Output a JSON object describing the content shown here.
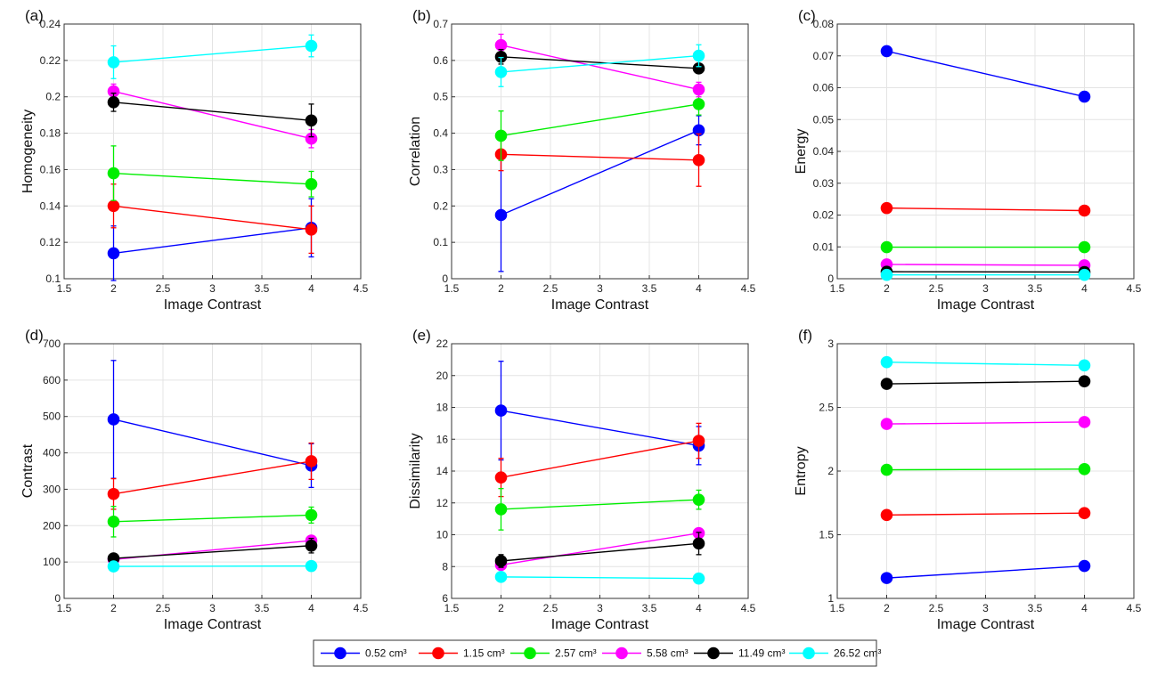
{
  "legend": {
    "series": [
      {
        "name": "0.52 cm³",
        "color": "#0000ff"
      },
      {
        "name": "1.15 cm³",
        "color": "#ff0000"
      },
      {
        "name": "2.57 cm³",
        "color": "#00ee00"
      },
      {
        "name": "5.58 cm³",
        "color": "#ff00ff"
      },
      {
        "name": "11.49 cm³",
        "color": "#000000"
      },
      {
        "name": "26.52 cm³",
        "color": "#00ffff"
      }
    ]
  },
  "chart_data": [
    {
      "type": "line",
      "panel_label": "(a)",
      "xlabel": "Image Contrast",
      "ylabel": "Homogeneity",
      "xlim": [
        1.5,
        4.5
      ],
      "ylim": [
        0.1,
        0.24
      ],
      "xticks": [
        1.5,
        2,
        2.5,
        3,
        3.5,
        4,
        4.5
      ],
      "xtick_labels": [
        "1.5",
        "2",
        "2.5",
        "3",
        "3.5",
        "4",
        "4.5"
      ],
      "yticks": [
        0.1,
        0.12,
        0.14,
        0.16,
        0.18,
        0.2,
        0.22,
        0.24
      ],
      "ytick_labels": [
        "0.1",
        "0.12",
        "0.14",
        "0.16",
        "0.18",
        "0.2",
        "0.22",
        "0.24"
      ],
      "x": [
        2,
        4
      ],
      "grid": true,
      "series": [
        {
          "name": "0.52 cm³",
          "values": [
            0.114,
            0.128
          ],
          "err": [
            0.015,
            0.016
          ]
        },
        {
          "name": "1.15 cm³",
          "values": [
            0.14,
            0.127
          ],
          "err": [
            0.012,
            0.013
          ]
        },
        {
          "name": "2.57 cm³",
          "values": [
            0.158,
            0.152
          ],
          "err": [
            0.015,
            0.007
          ]
        },
        {
          "name": "5.58 cm³",
          "values": [
            0.203,
            0.177
          ],
          "err": [
            0.004,
            0.005
          ]
        },
        {
          "name": "11.49 cm³",
          "values": [
            0.197,
            0.187
          ],
          "err": [
            0.005,
            0.009
          ]
        },
        {
          "name": "26.52 cm³",
          "values": [
            0.219,
            0.228
          ],
          "err": [
            0.009,
            0.006
          ]
        }
      ]
    },
    {
      "type": "line",
      "panel_label": "(b)",
      "xlabel": "Image Contrast",
      "ylabel": "Correlation",
      "xlim": [
        1.5,
        4.5
      ],
      "ylim": [
        0,
        0.7
      ],
      "xticks": [
        1.5,
        2,
        2.5,
        3,
        3.5,
        4,
        4.5
      ],
      "xtick_labels": [
        "1.5",
        "2",
        "2.5",
        "3",
        "3.5",
        "4",
        "4.5"
      ],
      "yticks": [
        0,
        0.1,
        0.2,
        0.3,
        0.4,
        0.5,
        0.6,
        0.7
      ],
      "ytick_labels": [
        "0",
        "0.1",
        "0.2",
        "0.3",
        "0.4",
        "0.5",
        "0.6",
        "0.7"
      ],
      "x": [
        2,
        4
      ],
      "grid": true,
      "series": [
        {
          "name": "0.52 cm³",
          "values": [
            0.175,
            0.408
          ],
          "err": [
            0.155,
            0.04
          ]
        },
        {
          "name": "1.15 cm³",
          "values": [
            0.342,
            0.326
          ],
          "err": [
            0.045,
            0.072
          ]
        },
        {
          "name": "2.57 cm³",
          "values": [
            0.393,
            0.48
          ],
          "err": [
            0.068,
            0.03
          ]
        },
        {
          "name": "5.58 cm³",
          "values": [
            0.642,
            0.52
          ],
          "err": [
            0.03,
            0.02
          ]
        },
        {
          "name": "11.49 cm³",
          "values": [
            0.61,
            0.578
          ],
          "err": [
            0.02,
            0.01
          ]
        },
        {
          "name": "26.52 cm³",
          "values": [
            0.568,
            0.613
          ],
          "err": [
            0.04,
            0.03
          ]
        }
      ]
    },
    {
      "type": "line",
      "panel_label": "(c)",
      "xlabel": "Image Contrast",
      "ylabel": "Energy",
      "xlim": [
        1.5,
        4.5
      ],
      "ylim": [
        0,
        0.08
      ],
      "xticks": [
        1.5,
        2,
        2.5,
        3,
        3.5,
        4,
        4.5
      ],
      "xtick_labels": [
        "1.5",
        "2",
        "2.5",
        "3",
        "3.5",
        "4",
        "4.5"
      ],
      "yticks": [
        0,
        0.01,
        0.02,
        0.03,
        0.04,
        0.05,
        0.06,
        0.07,
        0.08
      ],
      "ytick_labels": [
        "0",
        "0.01",
        "0.02",
        "0.03",
        "0.04",
        "0.05",
        "0.06",
        "0.07",
        "0.08"
      ],
      "x": [
        2,
        4
      ],
      "grid": true,
      "series": [
        {
          "name": "0.52 cm³",
          "values": [
            0.0715,
            0.0572
          ],
          "err": [
            0,
            0
          ]
        },
        {
          "name": "1.15 cm³",
          "values": [
            0.0222,
            0.0214
          ],
          "err": [
            0,
            0
          ]
        },
        {
          "name": "2.57 cm³",
          "values": [
            0.0099,
            0.0099
          ],
          "err": [
            0,
            0
          ]
        },
        {
          "name": "5.58 cm³",
          "values": [
            0.0045,
            0.0042
          ],
          "err": [
            0,
            0
          ]
        },
        {
          "name": "11.49 cm³",
          "values": [
            0.0022,
            0.0021
          ],
          "err": [
            0,
            0
          ]
        },
        {
          "name": "26.52 cm³",
          "values": [
            0.0012,
            0.0012
          ],
          "err": [
            0,
            0
          ]
        }
      ]
    },
    {
      "type": "line",
      "panel_label": "(d)",
      "xlabel": "Image Contrast",
      "ylabel": "Contrast",
      "xlim": [
        1.5,
        4.5
      ],
      "ylim": [
        0,
        700
      ],
      "xticks": [
        1.5,
        2,
        2.5,
        3,
        3.5,
        4,
        4.5
      ],
      "xtick_labels": [
        "1.5",
        "2",
        "2.5",
        "3",
        "3.5",
        "4",
        "4.5"
      ],
      "yticks": [
        0,
        100,
        200,
        300,
        400,
        500,
        600,
        700
      ],
      "ytick_labels": [
        "0",
        "100",
        "200",
        "300",
        "400",
        "500",
        "600",
        "700"
      ],
      "x": [
        2,
        4
      ],
      "grid": true,
      "series": [
        {
          "name": "0.52 cm³",
          "values": [
            492,
            365
          ],
          "err": [
            162,
            60
          ]
        },
        {
          "name": "1.15 cm³",
          "values": [
            287,
            377
          ],
          "err": [
            42,
            50
          ]
        },
        {
          "name": "2.57 cm³",
          "values": [
            211,
            229
          ],
          "err": [
            42,
            22
          ]
        },
        {
          "name": "5.58 cm³",
          "values": [
            107,
            159
          ],
          "err": [
            8,
            10
          ]
        },
        {
          "name": "11.49 cm³",
          "values": [
            110,
            145
          ],
          "err": [
            10,
            20
          ]
        },
        {
          "name": "26.52 cm³",
          "values": [
            88,
            89
          ],
          "err": [
            4,
            4
          ]
        }
      ]
    },
    {
      "type": "line",
      "panel_label": "(e)",
      "xlabel": "Image Contrast",
      "ylabel": "Dissimilarity",
      "xlim": [
        1.5,
        4.5
      ],
      "ylim": [
        6,
        22
      ],
      "xticks": [
        1.5,
        2,
        2.5,
        3,
        3.5,
        4,
        4.5
      ],
      "xtick_labels": [
        "1.5",
        "2",
        "2.5",
        "3",
        "3.5",
        "4",
        "4.5"
      ],
      "yticks": [
        6,
        8,
        10,
        12,
        14,
        16,
        18,
        20,
        22
      ],
      "ytick_labels": [
        "6",
        "8",
        "10",
        "12",
        "14",
        "16",
        "18",
        "20",
        "22"
      ],
      "x": [
        2,
        4
      ],
      "grid": true,
      "series": [
        {
          "name": "0.52 cm³",
          "values": [
            17.8,
            15.6
          ],
          "err": [
            3.1,
            1.2
          ]
        },
        {
          "name": "1.15 cm³",
          "values": [
            13.6,
            15.9
          ],
          "err": [
            1.2,
            1.1
          ]
        },
        {
          "name": "2.57 cm³",
          "values": [
            11.6,
            12.2
          ],
          "err": [
            1.3,
            0.6
          ]
        },
        {
          "name": "5.58 cm³",
          "values": [
            8.1,
            10.1
          ],
          "err": [
            0.3,
            0.3
          ]
        },
        {
          "name": "11.49 cm³",
          "values": [
            8.35,
            9.45
          ],
          "err": [
            0.4,
            0.7
          ]
        },
        {
          "name": "26.52 cm³",
          "values": [
            7.35,
            7.25
          ],
          "err": [
            0.2,
            0.2
          ]
        }
      ]
    },
    {
      "type": "line",
      "panel_label": "(f)",
      "xlabel": "Image Contrast",
      "ylabel": "Entropy",
      "xlim": [
        1.5,
        4.5
      ],
      "ylim": [
        1,
        3
      ],
      "xticks": [
        1.5,
        2,
        2.5,
        3,
        3.5,
        4,
        4.5
      ],
      "xtick_labels": [
        "1.5",
        "2",
        "2.5",
        "3",
        "3.5",
        "4",
        "4.5"
      ],
      "yticks": [
        1,
        1.5,
        2,
        2.5,
        3
      ],
      "ytick_labels": [
        "1",
        "1.5",
        "2",
        "2.5",
        "3"
      ],
      "x": [
        2,
        4
      ],
      "grid": true,
      "series": [
        {
          "name": "0.52 cm³",
          "values": [
            1.16,
            1.255
          ],
          "err": [
            0,
            0
          ]
        },
        {
          "name": "1.15 cm³",
          "values": [
            1.655,
            1.67
          ],
          "err": [
            0,
            0
          ]
        },
        {
          "name": "2.57 cm³",
          "values": [
            2.01,
            2.015
          ],
          "err": [
            0,
            0
          ]
        },
        {
          "name": "5.58 cm³",
          "values": [
            2.37,
            2.385
          ],
          "err": [
            0,
            0
          ]
        },
        {
          "name": "11.49 cm³",
          "values": [
            2.685,
            2.705
          ],
          "err": [
            0,
            0
          ]
        },
        {
          "name": "26.52 cm³",
          "values": [
            2.855,
            2.83
          ],
          "err": [
            0,
            0
          ]
        }
      ]
    }
  ]
}
